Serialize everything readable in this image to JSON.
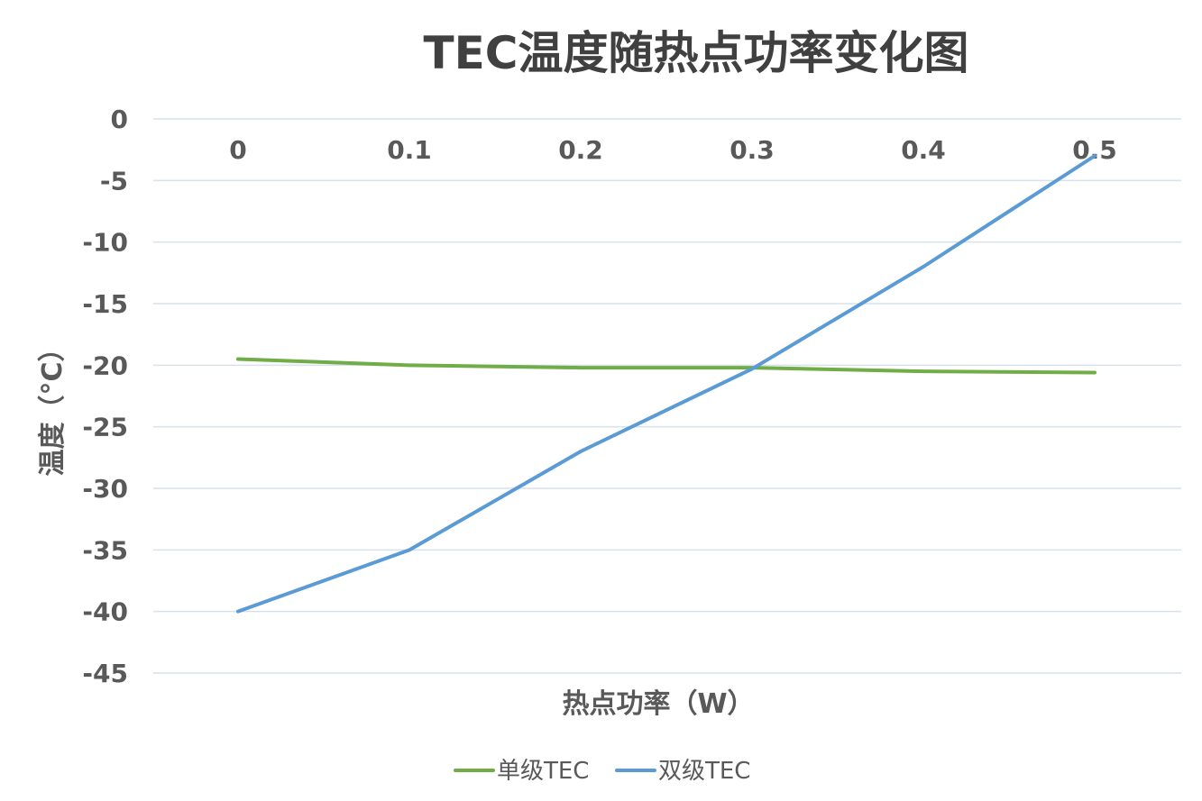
{
  "chart_data": {
    "type": "line",
    "title": "TEC温度随热点功率变化图",
    "xlabel": "热点功率（W）",
    "ylabel": "温度（°C）",
    "categories": [
      "0",
      "0.1",
      "0.2",
      "0.3",
      "0.4",
      "0.5"
    ],
    "x": [
      0,
      0.1,
      0.2,
      0.3,
      0.4,
      0.5
    ],
    "ylim": [
      -45,
      0
    ],
    "yticks": [
      0,
      -5,
      -10,
      -15,
      -20,
      -25,
      -30,
      -35,
      -40,
      -45
    ],
    "grid": true,
    "x_axis_position": "top",
    "legend_position": "bottom",
    "series": [
      {
        "name": "单级TEC",
        "color": "#70ad47",
        "values": [
          -19.5,
          -20.0,
          -20.2,
          -20.2,
          -20.5,
          -20.6
        ]
      },
      {
        "name": "双级TEC",
        "color": "#5b9bd5",
        "values": [
          -40.0,
          -35.0,
          -27.0,
          -20.3,
          -12.0,
          -3.0
        ]
      }
    ]
  }
}
